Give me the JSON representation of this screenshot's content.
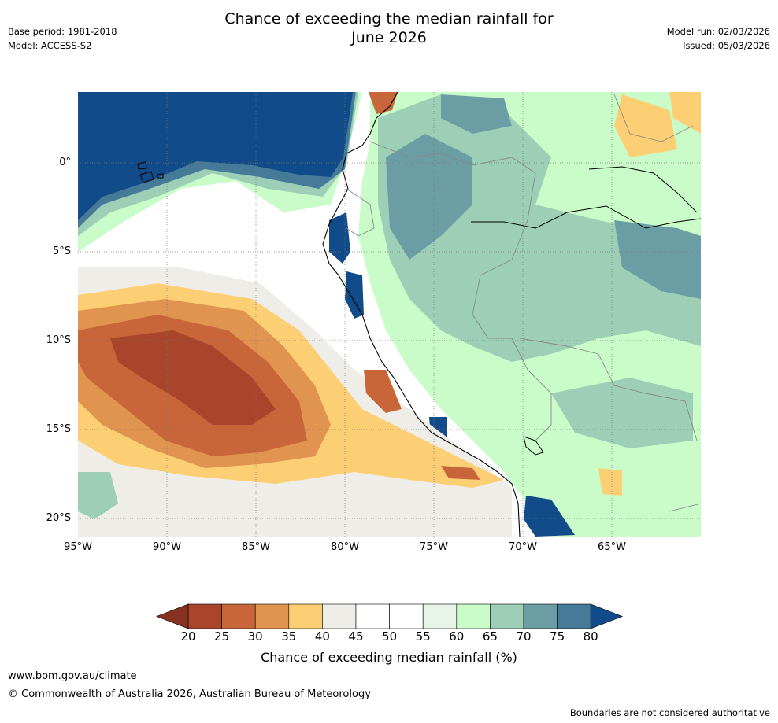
{
  "title_line1": "Chance of exceeding the median rainfall for",
  "title_line2": "June 2026",
  "meta_left": [
    "Base period: 1981-2018",
    "Model: ACCESS-S2"
  ],
  "meta_right": [
    "Model run: 02/03/2026",
    "Issued: 05/03/2026"
  ],
  "lat_labels": [
    "0°",
    "5°S",
    "10°S",
    "15°S",
    "20°S"
  ],
  "lon_labels": [
    "95°W",
    "90°W",
    "85°W",
    "80°W",
    "75°W",
    "70°W",
    "65°W"
  ],
  "colorbar": {
    "ticks": [
      "20",
      "25",
      "30",
      "35",
      "40",
      "45",
      "50",
      "55",
      "60",
      "65",
      "70",
      "75",
      "80"
    ],
    "colors": [
      "#a8452a",
      "#c8663a",
      "#e09450",
      "#fccf74",
      "#efede7",
      "#ffffff",
      "#ffffff",
      "#e8f4e8",
      "#c9fcc8",
      "#9ccfb6",
      "#6a9ea4",
      "#457a99"
    ],
    "under_color": "#873121",
    "over_color": "#124b89",
    "label": "Chance of exceeding median rainfall (%)"
  },
  "footer": {
    "site": "www.bom.gov.au/climate",
    "copyright": "© Commonwealth of Australia 2026, Australian Bureau of Meteorology",
    "disclaimer": "Boundaries are not considered authoritative"
  }
}
